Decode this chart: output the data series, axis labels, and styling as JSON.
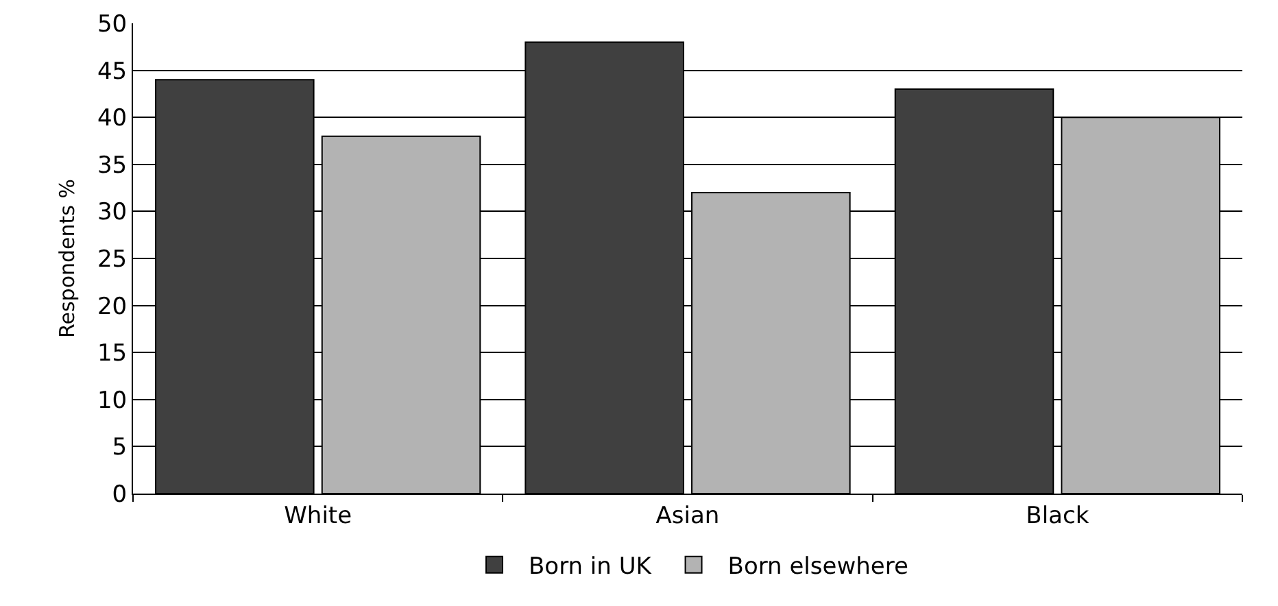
{
  "chart_data": {
    "type": "bar",
    "ylabel": "Respondents %",
    "categories": [
      "White",
      "Asian",
      "Black"
    ],
    "series": [
      {
        "name": "Born in UK",
        "color": "#404040",
        "values": [
          44,
          48,
          43
        ]
      },
      {
        "name": "Born elsewhere",
        "color": "#b3b3b3",
        "values": [
          38,
          32,
          40
        ]
      }
    ],
    "ylim": [
      0,
      50
    ],
    "yticks": [
      0,
      5,
      10,
      15,
      20,
      25,
      30,
      35,
      40,
      45,
      50
    ],
    "grid": "y",
    "legend": "bottom"
  }
}
